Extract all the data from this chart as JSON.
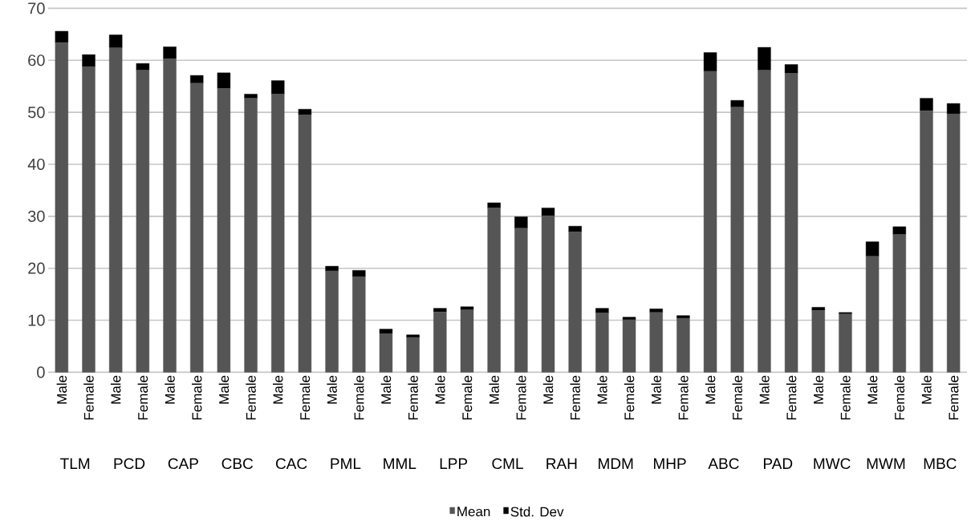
{
  "chart_data": {
    "type": "bar",
    "stacked": true,
    "categories": [
      "Male",
      "Female",
      "Male",
      "Female",
      "Male",
      "Female",
      "Male",
      "Female",
      "Male",
      "Female",
      "Male",
      "Female",
      "Male",
      "Female",
      "Male",
      "Female",
      "Male",
      "Female",
      "Male",
      "Female",
      "Male",
      "Female",
      "Male",
      "Female",
      "Male",
      "Female",
      "Male",
      "Female",
      "Male",
      "Female",
      "Male",
      "Female",
      "Male",
      "Female"
    ],
    "series": [
      {
        "name": "Mean",
        "color": "#555555",
        "values": [
          63.4,
          58.8,
          62.4,
          58.1,
          60.3,
          55.6,
          54.6,
          52.7,
          53.5,
          49.5,
          19.5,
          18.4,
          7.4,
          6.7,
          11.6,
          12.0,
          31.6,
          27.7,
          30.1,
          27.0,
          11.4,
          10.1,
          11.5,
          10.4,
          57.9,
          51.0,
          58.1,
          57.5,
          11.9,
          11.2,
          22.3,
          26.5,
          50.3,
          49.7
        ]
      },
      {
        "name": "Std. Dev",
        "color": "#000000",
        "values": [
          2.2,
          2.3,
          2.5,
          1.3,
          2.3,
          1.5,
          3.0,
          0.8,
          2.6,
          1.1,
          0.9,
          1.2,
          0.9,
          0.5,
          0.7,
          0.6,
          1.0,
          2.2,
          1.5,
          1.1,
          0.9,
          0.5,
          0.7,
          0.5,
          3.6,
          1.3,
          4.4,
          1.7,
          0.6,
          0.3,
          2.8,
          1.5,
          2.4,
          2.0
        ]
      }
    ],
    "ylim": [
      0,
      70
    ],
    "yticks": [
      0,
      10,
      20,
      30,
      40,
      50,
      60,
      70
    ],
    "grid": "y",
    "legend": "bottom",
    "annotations": [
      "TLM",
      "PCD",
      "CAP",
      "CBC",
      "CAC",
      "PML",
      "MML",
      "LPP",
      "CML",
      "RAH",
      "MDM",
      "MHP",
      "ABC",
      "PAD",
      "MWC",
      "MWM",
      "MBC"
    ]
  }
}
